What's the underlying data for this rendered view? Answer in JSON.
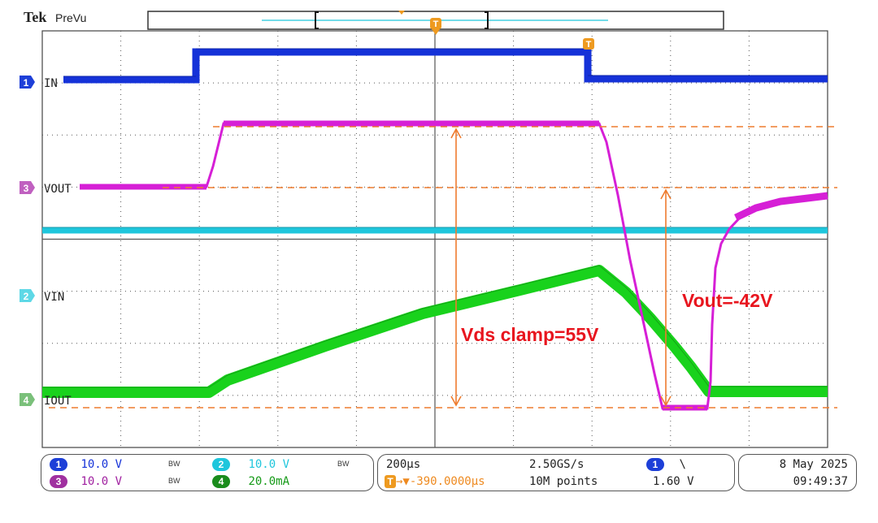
{
  "header": {
    "brand": "Tek",
    "mode": "PreVu"
  },
  "trigger": {
    "marker": "T",
    "position_marker": "T"
  },
  "colors": {
    "ch1": "#1532d8",
    "ch2": "#1ec6dc",
    "ch3": "#d61fd6",
    "ch4": "#19d21c",
    "annotation": "#ee7b2e",
    "annotation_text": "#e8151e",
    "grid": "#444444",
    "ch1_badge": "#1d3fd8"
  },
  "channel_labels": {
    "ch1": "IN",
    "ch3": "VOUT",
    "ch2": "VIN",
    "ch4": "IOUT"
  },
  "channel_markers": {
    "ch1": "1",
    "ch3": "3",
    "ch2": "2",
    "ch4": "4"
  },
  "annotations": {
    "vds_clamp": "Vds clamp=55V",
    "vout": "Vout=-42V"
  },
  "status": {
    "channels": [
      {
        "num": "1",
        "scale": "10.0 V",
        "bw": "BW"
      },
      {
        "num": "2",
        "scale": "10.0 V",
        "bw": "BW"
      },
      {
        "num": "3",
        "scale": "10.0 V",
        "bw": "BW"
      },
      {
        "num": "4",
        "scale": "20.0mA"
      }
    ],
    "timebase": {
      "time_div": "200µs",
      "sample_rate": "2.50GS/s",
      "position": "→▼-390.0000µs",
      "record_length": "10M points"
    },
    "trigger": {
      "source": "1",
      "slope": "\\",
      "level": "1.60 V"
    },
    "datetime": {
      "date": "8 May 2025",
      "time": "09:49:37"
    }
  }
}
